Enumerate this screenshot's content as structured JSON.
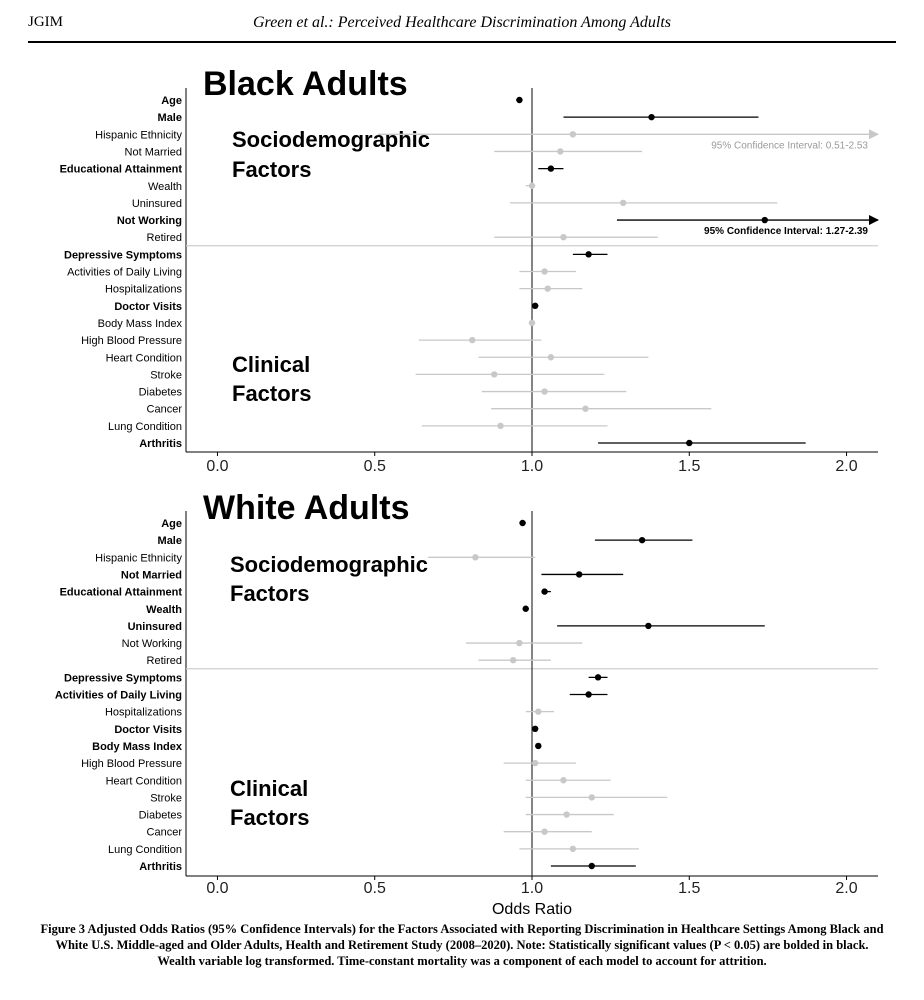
{
  "header": {
    "journal": "JGIM",
    "running_title": "Green et al.: Perceived Healthcare Discrimination Among Adults"
  },
  "caption": "Figure 3  Adjusted Odds Ratios (95% Confidence Intervals) for the Factors Associated with Reporting Discrimination in Healthcare Settings Among Black and White U.S. Middle-aged and Older Adults, Health and Retirement Study (2008–2020). Note: Statistically significant values (P < 0.05) are bolded in black. Wealth variable log transformed. Time-constant mortality was a component of each model to account for attrition.",
  "colors": {
    "significant": "#000000",
    "nonsignificant": "#c8c8c8",
    "ref_line": "#333333",
    "divider": "#cfcfcf"
  },
  "chart_data": [
    {
      "type": "forest",
      "title": "Black Adults",
      "xlabel": "",
      "xlim": [
        -0.1,
        2.1
      ],
      "xticks": [
        0.0,
        0.5,
        1.0,
        1.5,
        2.0
      ],
      "xtick_labels": [
        "0.0",
        "0.5",
        "1.0",
        "1.5",
        "2.0"
      ],
      "reference": 1.0,
      "group_labels": [
        {
          "text": "Sociodemographic Factors",
          "lines": [
            "Sociodemographic",
            "Factors"
          ]
        },
        {
          "text": "Clinical Factors",
          "lines": [
            "Clinical",
            "Factors"
          ]
        }
      ],
      "divider_after_index": 8,
      "annotations": [
        {
          "row": 2,
          "text": "95% Confidence Interval: 0.51-2.53",
          "significant": false
        },
        {
          "row": 7,
          "text": "95% Confidence Interval: 1.27-2.39",
          "significant": true
        }
      ],
      "rows": [
        {
          "label": "Age",
          "or": 0.96,
          "lo": 0.95,
          "hi": 0.97,
          "significant": true
        },
        {
          "label": "Male",
          "or": 1.38,
          "lo": 1.1,
          "hi": 1.72,
          "significant": true
        },
        {
          "label": "Hispanic Ethnicity",
          "or": 1.13,
          "lo": 0.51,
          "hi": 2.53,
          "significant": false
        },
        {
          "label": "Not Married",
          "or": 1.09,
          "lo": 0.88,
          "hi": 1.35,
          "significant": false
        },
        {
          "label": "Educational Attainment",
          "or": 1.06,
          "lo": 1.02,
          "hi": 1.1,
          "significant": true
        },
        {
          "label": "Wealth",
          "or": 1.0,
          "lo": 0.98,
          "hi": 1.01,
          "significant": false
        },
        {
          "label": "Uninsured",
          "or": 1.29,
          "lo": 0.93,
          "hi": 1.78,
          "significant": false
        },
        {
          "label": "Not Working",
          "or": 1.74,
          "lo": 1.27,
          "hi": 2.39,
          "significant": true
        },
        {
          "label": "Retired",
          "or": 1.1,
          "lo": 0.88,
          "hi": 1.4,
          "significant": false
        },
        {
          "label": "Depressive Symptoms",
          "or": 1.18,
          "lo": 1.13,
          "hi": 1.24,
          "significant": true
        },
        {
          "label": "Activities of Daily Living",
          "or": 1.04,
          "lo": 0.96,
          "hi": 1.14,
          "significant": false
        },
        {
          "label": "Hospitalizations",
          "or": 1.05,
          "lo": 0.96,
          "hi": 1.16,
          "significant": false
        },
        {
          "label": "Doctor Visits",
          "or": 1.01,
          "lo": 1.0,
          "hi": 1.02,
          "significant": true
        },
        {
          "label": "Body Mass Index",
          "or": 1.0,
          "lo": 0.99,
          "hi": 1.01,
          "significant": false
        },
        {
          "label": "High Blood Pressure",
          "or": 0.81,
          "lo": 0.64,
          "hi": 1.03,
          "significant": false
        },
        {
          "label": "Heart Condition",
          "or": 1.06,
          "lo": 0.83,
          "hi": 1.37,
          "significant": false
        },
        {
          "label": "Stroke",
          "or": 0.88,
          "lo": 0.63,
          "hi": 1.23,
          "significant": false
        },
        {
          "label": "Diabetes",
          "or": 1.04,
          "lo": 0.84,
          "hi": 1.3,
          "significant": false
        },
        {
          "label": "Cancer",
          "or": 1.17,
          "lo": 0.87,
          "hi": 1.57,
          "significant": false
        },
        {
          "label": "Lung Condition",
          "or": 0.9,
          "lo": 0.65,
          "hi": 1.24,
          "significant": false
        },
        {
          "label": "Arthritis",
          "or": 1.5,
          "lo": 1.21,
          "hi": 1.87,
          "significant": true
        }
      ]
    },
    {
      "type": "forest",
      "title": "White Adults",
      "xlabel": "Odds Ratio",
      "xlim": [
        -0.1,
        2.1
      ],
      "xticks": [
        0.0,
        0.5,
        1.0,
        1.5,
        2.0
      ],
      "xtick_labels": [
        "0.0",
        "0.5",
        "1.0",
        "1.5",
        "2.0"
      ],
      "reference": 1.0,
      "group_labels": [
        {
          "text": "Sociodemographic Factors",
          "lines": [
            "Sociodemographic",
            "Factors"
          ]
        },
        {
          "text": "Clinical Factors",
          "lines": [
            "Clinical",
            "Factors"
          ]
        }
      ],
      "divider_after_index": 8,
      "annotations": [],
      "rows": [
        {
          "label": "Age",
          "or": 0.97,
          "lo": 0.96,
          "hi": 0.98,
          "significant": true
        },
        {
          "label": "Male",
          "or": 1.35,
          "lo": 1.2,
          "hi": 1.51,
          "significant": true
        },
        {
          "label": "Hispanic Ethnicity",
          "or": 0.82,
          "lo": 0.67,
          "hi": 1.01,
          "significant": false
        },
        {
          "label": "Not Married",
          "or": 1.15,
          "lo": 1.03,
          "hi": 1.29,
          "significant": true
        },
        {
          "label": "Educational Attainment",
          "or": 1.04,
          "lo": 1.03,
          "hi": 1.06,
          "significant": true
        },
        {
          "label": "Wealth",
          "or": 0.98,
          "lo": 0.97,
          "hi": 0.99,
          "significant": true
        },
        {
          "label": "Uninsured",
          "or": 1.37,
          "lo": 1.08,
          "hi": 1.74,
          "significant": true
        },
        {
          "label": "Not Working",
          "or": 0.96,
          "lo": 0.79,
          "hi": 1.16,
          "significant": false
        },
        {
          "label": "Retired",
          "or": 0.94,
          "lo": 0.83,
          "hi": 1.06,
          "significant": false
        },
        {
          "label": "Depressive Symptoms",
          "or": 1.21,
          "lo": 1.18,
          "hi": 1.24,
          "significant": true
        },
        {
          "label": "Activities of Daily Living",
          "or": 1.18,
          "lo": 1.12,
          "hi": 1.24,
          "significant": true
        },
        {
          "label": "Hospitalizations",
          "or": 1.02,
          "lo": 0.98,
          "hi": 1.07,
          "significant": false
        },
        {
          "label": "Doctor Visits",
          "or": 1.01,
          "lo": 1.01,
          "hi": 1.02,
          "significant": true
        },
        {
          "label": "Body Mass Index",
          "or": 1.02,
          "lo": 1.01,
          "hi": 1.03,
          "significant": true
        },
        {
          "label": "High Blood Pressure",
          "or": 1.01,
          "lo": 0.91,
          "hi": 1.14,
          "significant": false
        },
        {
          "label": "Heart Condition",
          "or": 1.1,
          "lo": 0.98,
          "hi": 1.25,
          "significant": false
        },
        {
          "label": "Stroke",
          "or": 1.19,
          "lo": 0.98,
          "hi": 1.43,
          "significant": false
        },
        {
          "label": "Diabetes",
          "or": 1.11,
          "lo": 0.98,
          "hi": 1.26,
          "significant": false
        },
        {
          "label": "Cancer",
          "or": 1.04,
          "lo": 0.91,
          "hi": 1.19,
          "significant": false
        },
        {
          "label": "Lung Condition",
          "or": 1.13,
          "lo": 0.96,
          "hi": 1.34,
          "significant": false
        },
        {
          "label": "Arthritis",
          "or": 1.19,
          "lo": 1.06,
          "hi": 1.33,
          "significant": true
        }
      ]
    }
  ]
}
